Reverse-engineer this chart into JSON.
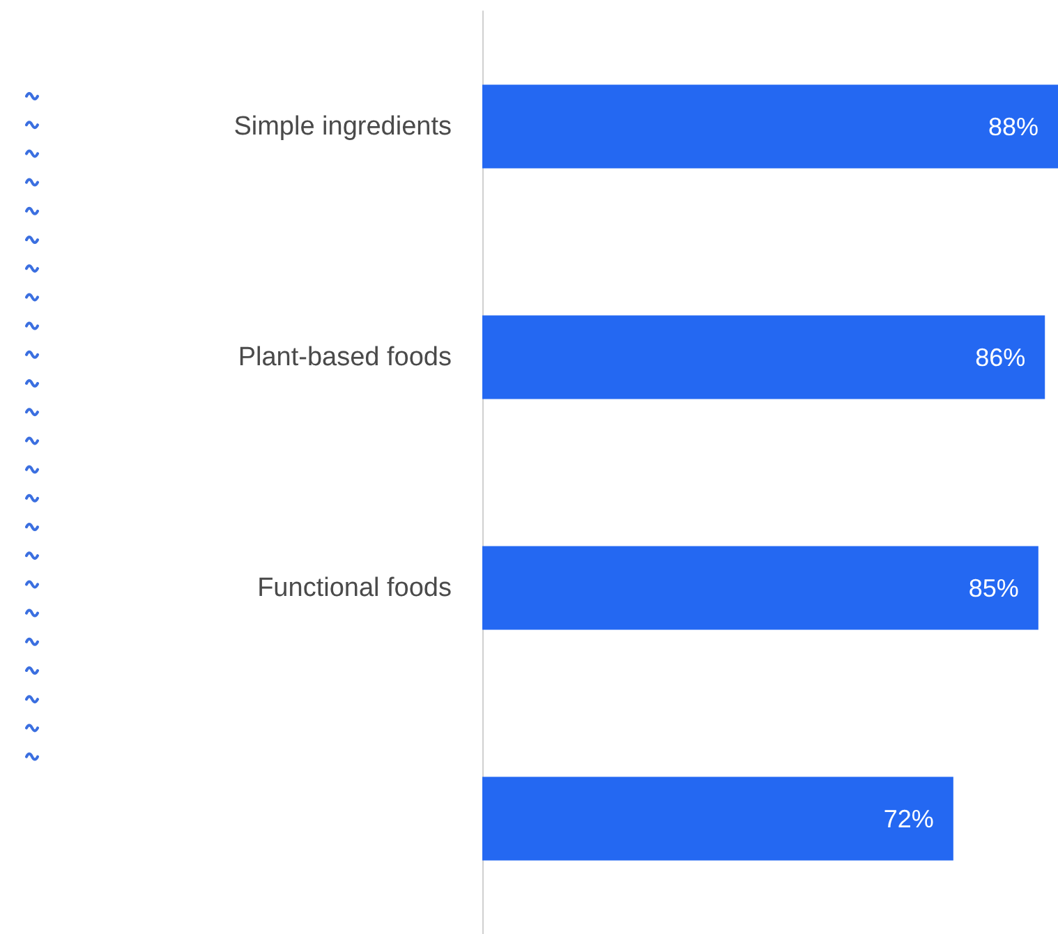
{
  "chart_data": {
    "type": "bar",
    "orientation": "horizontal",
    "categories": [
      "Simple ingredients",
      "Plant-based foods",
      "Functional foods",
      null
    ],
    "values": [
      88,
      86,
      85,
      72
    ],
    "value_labels": [
      "88%",
      "86%",
      "85%",
      "72%"
    ],
    "color": "#2468f2"
  }
}
